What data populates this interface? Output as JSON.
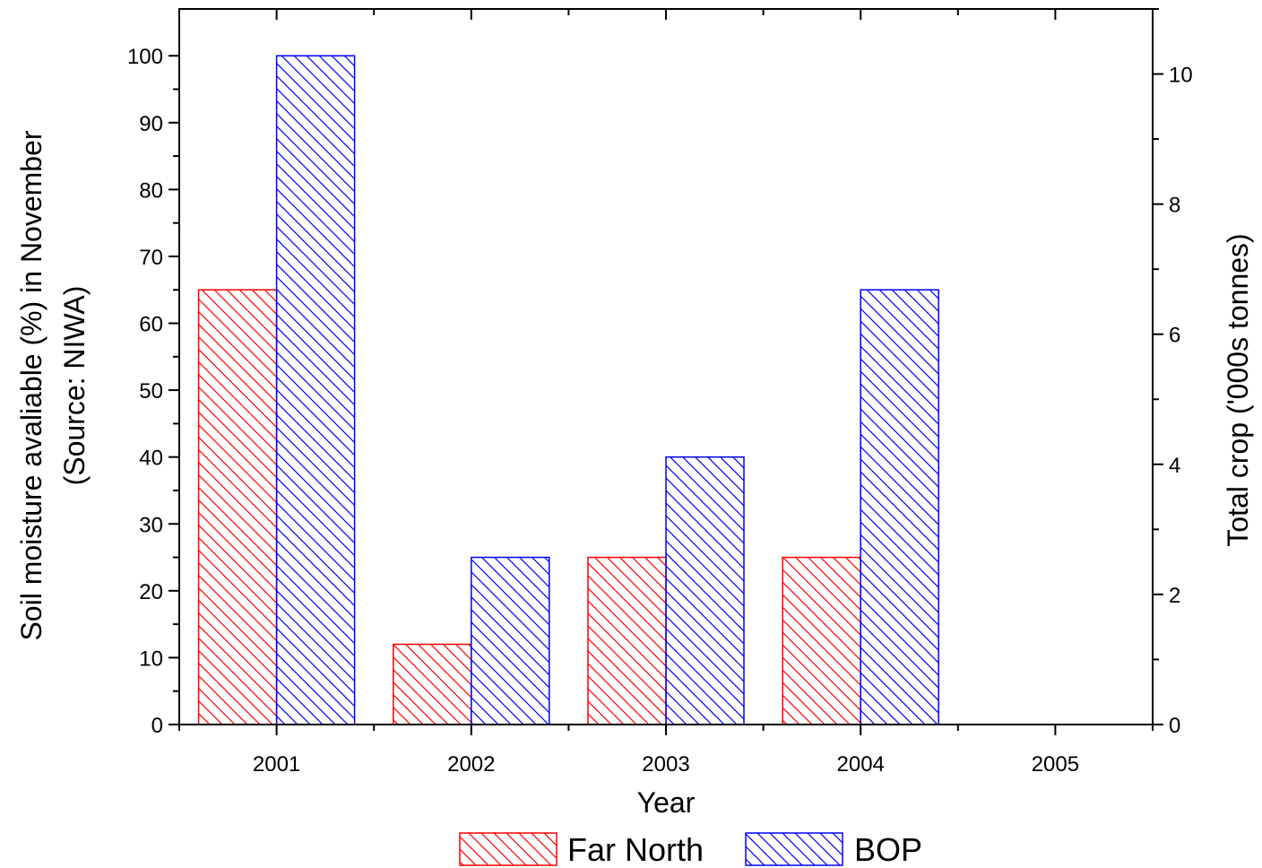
{
  "chart_data": {
    "type": "bar",
    "categories": [
      "2001",
      "2002",
      "2003",
      "2004",
      "2005"
    ],
    "series": [
      {
        "name": "Far North",
        "values": [
          65,
          12,
          25,
          25,
          null
        ],
        "color": "#ff0000",
        "pattern": "diagonal-hatch"
      },
      {
        "name": "BOP",
        "values": [
          100,
          25,
          40,
          65,
          null
        ],
        "color": "#0000ff",
        "pattern": "diagonal-hatch"
      }
    ],
    "title": "",
    "xlabel": "Year",
    "ylabel": "Soil moisture avaliable (%) in November",
    "ylabel_line2": "(Source: NIWA)",
    "ylim": [
      0,
      107
    ],
    "yticks": [
      0,
      10,
      20,
      30,
      40,
      50,
      60,
      70,
      80,
      90,
      100
    ],
    "y2label": "Total crop ('000s tonnes)",
    "y2lim": [
      0,
      11
    ],
    "y2ticks": [
      0,
      2,
      4,
      6,
      8,
      10
    ],
    "grid": false,
    "legend_position": "bottom-center"
  }
}
